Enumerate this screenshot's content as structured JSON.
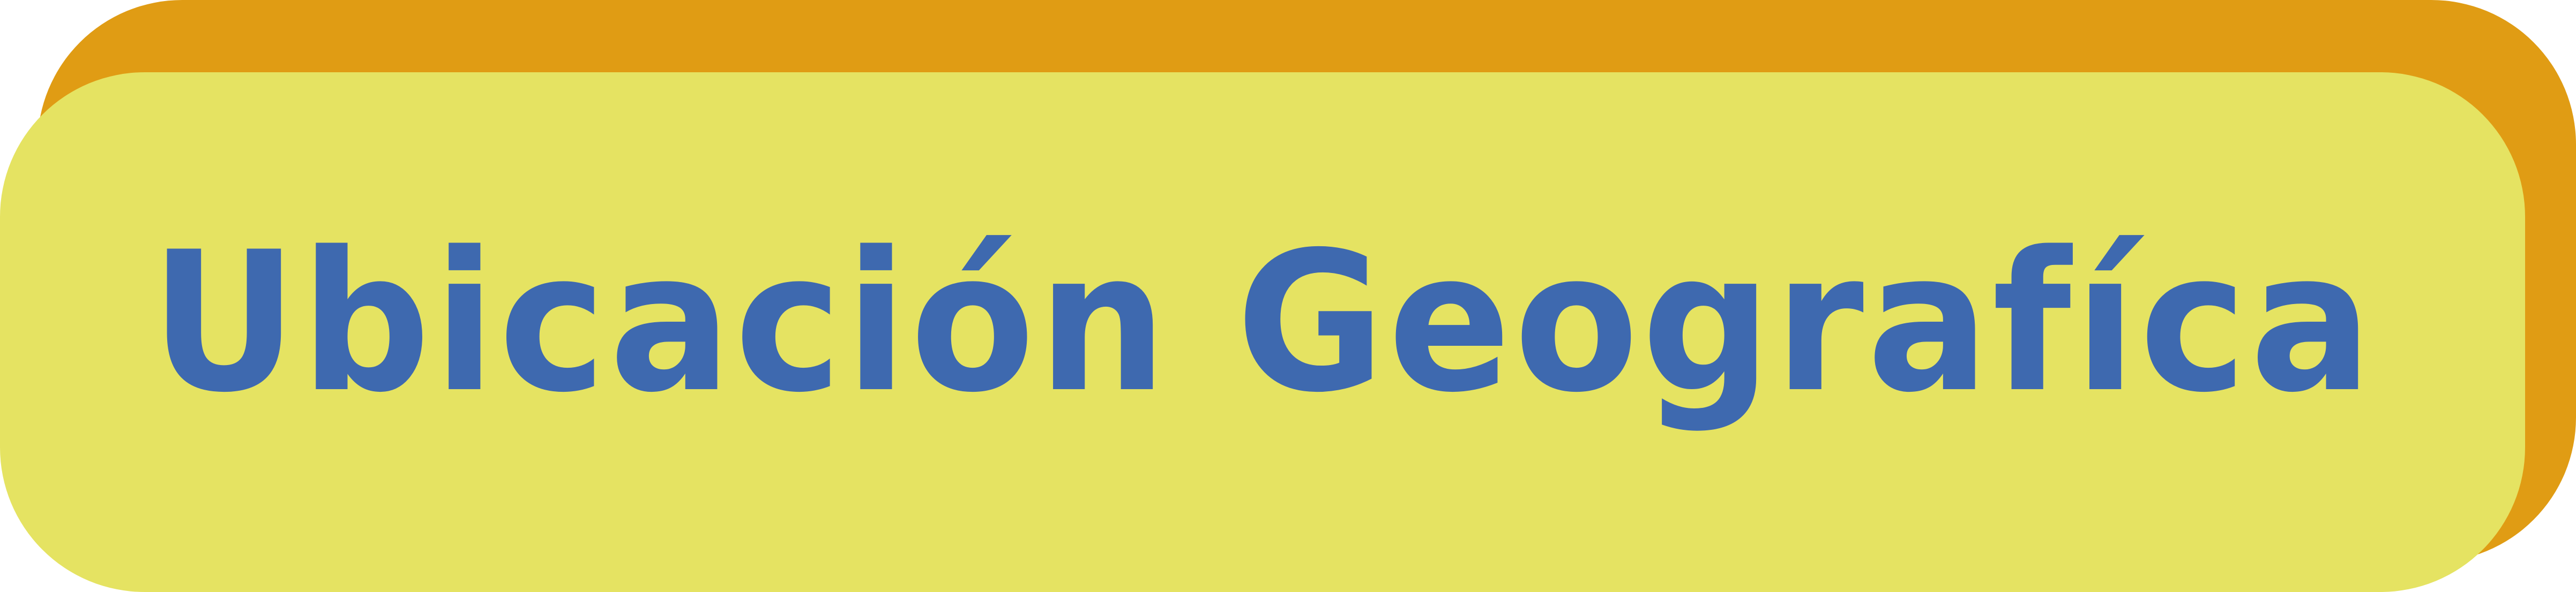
{
  "banner": {
    "title": "Ubicación Geografíca"
  },
  "colors": {
    "shadow": "#e09c14",
    "panel": "#e5e362",
    "text": "#3e69af"
  }
}
